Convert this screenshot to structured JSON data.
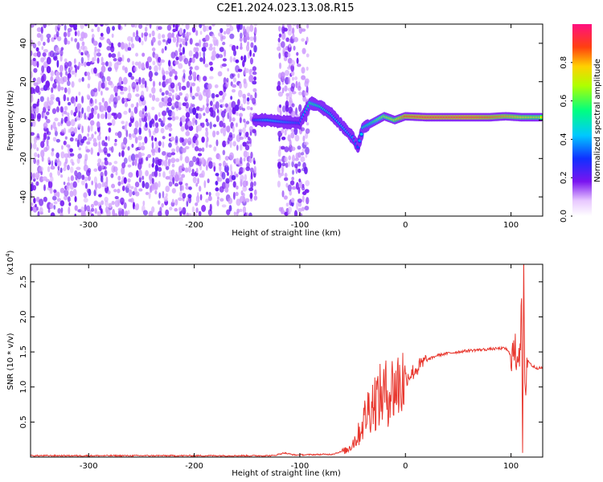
{
  "title": "C2E1.2024.023.13.08.R15",
  "chart_data": [
    {
      "type": "heatmap",
      "xlabel": "Height of straight line (km)",
      "ylabel": "Frequency (Hz)",
      "xlim": [
        -355,
        130
      ],
      "ylim": [
        -50,
        50
      ],
      "xticks": [
        -300,
        -200,
        -100,
        0,
        100
      ],
      "xtick_labels": [
        "-300",
        "-200",
        "-100",
        "0",
        "100"
      ],
      "yticks": [
        -40,
        -20,
        0,
        20,
        40
      ],
      "ytick_labels": [
        "-40",
        "-20",
        "0",
        "20",
        "40"
      ],
      "colorbar": {
        "label": "Normalized spectral amplitude",
        "range": [
          0,
          1
        ],
        "ticks": [
          0.0,
          0.2,
          0.4,
          0.6,
          0.8
        ],
        "tick_labels": [
          "0.0",
          "0.2",
          "0.4",
          "0.6",
          "0.8"
        ],
        "colormap": "rainbow"
      },
      "noise_regions": [
        [
          -355,
          -143
        ],
        [
          -120,
          -92
        ]
      ],
      "ridge": [
        {
          "x": -143,
          "freq": 0.0,
          "amp": 0.4
        },
        {
          "x": -130,
          "freq": 0.0,
          "amp": 0.5
        },
        {
          "x": -115,
          "freq": -1.0,
          "amp": 0.45
        },
        {
          "x": -100,
          "freq": -1.5,
          "amp": 0.4
        },
        {
          "x": -90,
          "freq": 9.0,
          "amp": 0.6
        },
        {
          "x": -80,
          "freq": 7.0,
          "amp": 0.55
        },
        {
          "x": -70,
          "freq": 3.0,
          "amp": 0.5
        },
        {
          "x": -60,
          "freq": -3.0,
          "amp": 0.5
        },
        {
          "x": -50,
          "freq": -9.0,
          "amp": 0.45
        },
        {
          "x": -45,
          "freq": -14.0,
          "amp": 0.4
        },
        {
          "x": -40,
          "freq": -4.0,
          "amp": 0.55
        },
        {
          "x": -30,
          "freq": -1.0,
          "amp": 0.6
        },
        {
          "x": -20,
          "freq": 2.0,
          "amp": 0.7
        },
        {
          "x": -10,
          "freq": 0.0,
          "amp": 0.75
        },
        {
          "x": 0,
          "freq": 2.0,
          "amp": 0.9
        },
        {
          "x": 20,
          "freq": 1.5,
          "amp": 0.95
        },
        {
          "x": 40,
          "freq": 1.5,
          "amp": 0.95
        },
        {
          "x": 60,
          "freq": 1.5,
          "amp": 0.95
        },
        {
          "x": 80,
          "freq": 1.5,
          "amp": 0.9
        },
        {
          "x": 95,
          "freq": 2.0,
          "amp": 0.85
        },
        {
          "x": 110,
          "freq": 1.5,
          "amp": 0.8
        },
        {
          "x": 130,
          "freq": 1.5,
          "amp": 0.75
        }
      ]
    },
    {
      "type": "line",
      "xlabel": "Height of straight line (km)",
      "ylabel": "SNR (10 * v/v)",
      "scale_label": "(x10",
      "scale_exponent": "4",
      "scale_suffix": ")",
      "xlim": [
        -355,
        130
      ],
      "ylim": [
        0,
        2.75
      ],
      "xticks": [
        -300,
        -200,
        -100,
        0,
        100
      ],
      "xtick_labels": [
        "-300",
        "-200",
        "-100",
        "0",
        "100"
      ],
      "yticks": [
        0.5,
        1.0,
        1.5,
        2.0,
        2.5
      ],
      "ytick_labels": [
        "0.5",
        "1.0",
        "1.5",
        "2.0",
        "2.5"
      ],
      "series": [
        {
          "color": "#e8372e",
          "points": [
            [
              -355,
              0.02
            ],
            [
              -200,
              0.02
            ],
            [
              -125,
              0.02
            ],
            [
              -115,
              0.06
            ],
            [
              -105,
              0.03
            ],
            [
              -70,
              0.04
            ],
            [
              -55,
              0.1
            ],
            [
              -45,
              0.3
            ],
            [
              -40,
              0.5
            ],
            [
              -35,
              0.7
            ],
            [
              -30,
              0.8
            ],
            [
              -25,
              0.85
            ],
            [
              -20,
              0.9
            ],
            [
              -15,
              0.95
            ],
            [
              -10,
              1.0
            ],
            [
              -5,
              1.05
            ],
            [
              0,
              1.12
            ],
            [
              10,
              1.25
            ],
            [
              20,
              1.38
            ],
            [
              30,
              1.45
            ],
            [
              40,
              1.48
            ],
            [
              50,
              1.5
            ],
            [
              60,
              1.52
            ],
            [
              70,
              1.53
            ],
            [
              80,
              1.54
            ],
            [
              90,
              1.55
            ],
            [
              95,
              1.55
            ],
            [
              100,
              1.45
            ],
            [
              105,
              1.48
            ],
            [
              108,
              1.55
            ],
            [
              110,
              2.0
            ],
            [
              111,
              0.08
            ],
            [
              112,
              2.68
            ],
            [
              113,
              0.8
            ],
            [
              115,
              1.4
            ],
            [
              120,
              1.3
            ],
            [
              125,
              1.27
            ],
            [
              130,
              1.27
            ]
          ]
        }
      ]
    }
  ]
}
